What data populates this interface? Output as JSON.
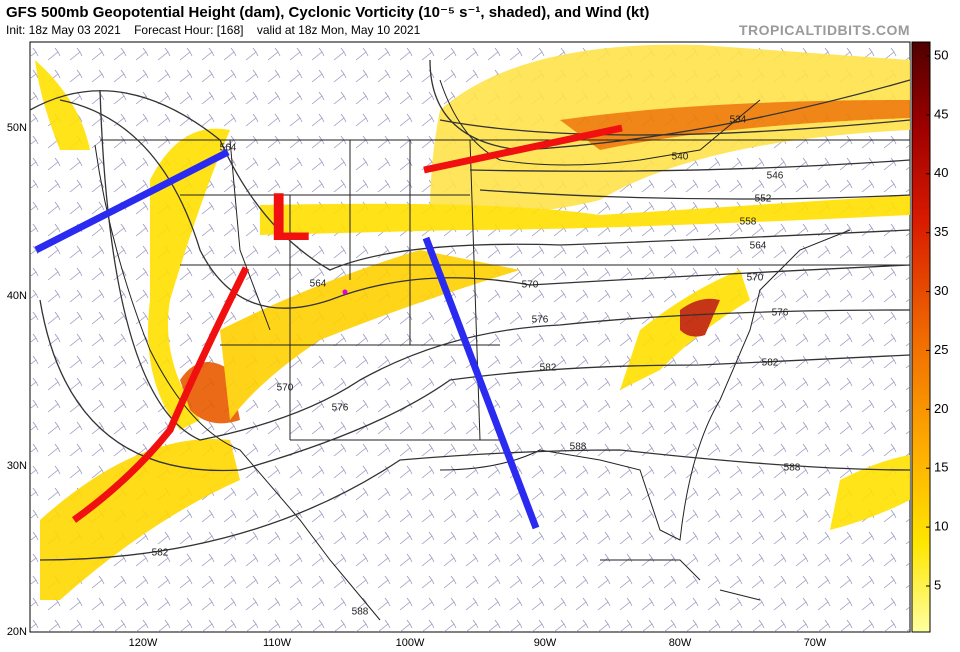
{
  "header": {
    "title": "GFS 500mb Geopotential Height (dam), Cyclonic Vorticity (10⁻⁵ s⁻¹, shaded), and Wind (kt)",
    "init": "Init: 18z May 03 2021",
    "forecast_hour": "Forecast Hour: [168]",
    "valid": "valid at 18z Mon, May 10 2021",
    "site": "TROPICALTIDBITS.COM"
  },
  "map": {
    "latitude_labels": [
      "50N",
      "40N",
      "30N",
      "20N"
    ],
    "longitude_labels": [
      "120W",
      "110W",
      "100W",
      "90W",
      "80W",
      "70W"
    ],
    "low_marker": "L",
    "contour_labels": [
      564,
      564,
      570,
      570,
      576,
      576,
      582,
      582,
      582,
      588,
      588,
      588,
      534,
      540,
      546,
      552,
      558,
      564,
      570,
      576
    ]
  },
  "colorbar": {
    "ticks": [
      5,
      10,
      15,
      20,
      25,
      30,
      35,
      40,
      45,
      50
    ]
  }
}
